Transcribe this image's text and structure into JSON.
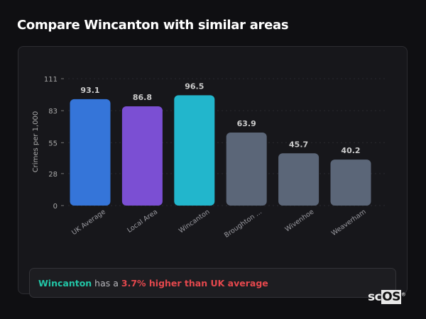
{
  "title": "Compare Wincanton with similar areas",
  "chart_data": {
    "type": "bar",
    "title": "",
    "xlabel": "",
    "ylabel": "Crimes per 1,000",
    "ylim": [
      0,
      111
    ],
    "yticks": [
      0,
      28,
      55,
      83,
      111
    ],
    "grid": true,
    "categories": [
      "UK Average",
      "Local Area",
      "Wincanton",
      "Broughton ...",
      "Wivenhoe",
      "Weaverham"
    ],
    "values": [
      93.1,
      86.8,
      96.5,
      63.9,
      45.7,
      40.2
    ],
    "colors": [
      "#3575d9",
      "#7b4fd3",
      "#22b6cc",
      "#5b6678",
      "#5b6678",
      "#5b6678"
    ]
  },
  "footer": {
    "place": "Wincanton",
    "middle": " has a ",
    "difference": "3.7% higher than UK average"
  },
  "logo": {
    "text_a": "sc",
    "text_b": "OS",
    "mark": "®"
  }
}
